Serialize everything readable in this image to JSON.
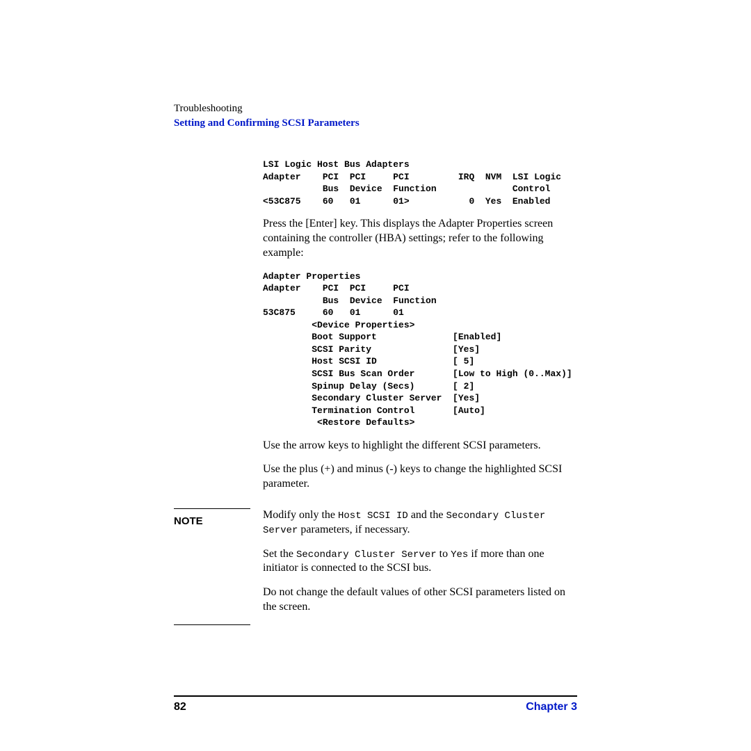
{
  "header": {
    "troubleshooting": "Troubleshooting",
    "setting": "Setting and Confirming SCSI Parameters"
  },
  "screen1": {
    "title": "LSI Logic Host Bus Adapters",
    "h1": "Adapter    PCI  PCI     PCI         IRQ  NVM  LSI Logic",
    "h2": "           Bus  Device  Function              Control",
    "row": "<53C875    60   01      01>           0  Yes  Enabled"
  },
  "para1": "Press the [Enter] key. This displays the Adapter Properties screen containing the controller (HBA) settings; refer to the following example:",
  "screen2": {
    "title": "Adapter Properties",
    "blank1": "",
    "h1": "Adapter    PCI  PCI     PCI",
    "h2": "           Bus  Device  Function",
    "row": "53C875     60   01      01",
    "blank2": "",
    "dev": "         <Device Properties>",
    "blank3": "",
    "p1": "         Boot Support              [Enabled]",
    "p2": "         SCSI Parity               [Yes]",
    "p3": "         Host SCSI ID              [ 5]",
    "p4": "         SCSI Bus Scan Order       [Low to High (0..Max)]",
    "p5": "         Spinup Delay (Secs)       [ 2]",
    "p6": "         Secondary Cluster Server  [Yes]",
    "p7": "         Termination Control       [Auto]",
    "p8": "          <Restore Defaults>"
  },
  "para2": "Use the arrow keys to highlight the different SCSI parameters.",
  "para3": "Use the plus (+) and minus (-) keys to change the highlighted SCSI parameter.",
  "note": {
    "label": "NOTE",
    "l1a": "Modify only the ",
    "l1b": "Host SCSI ID",
    "l1c": " and the ",
    "l1d": "Secondary Cluster Server",
    "l1e": " parameters, if necessary.",
    "l2a": "Set the ",
    "l2b": "Secondary Cluster Server",
    "l2c": " to ",
    "l2d": "Yes",
    "l2e": " if more than one initiator is connected to the SCSI bus.",
    "l3": "Do not change the default values of other SCSI parameters listed on the screen."
  },
  "footer": {
    "page": "82",
    "chapter": "Chapter 3"
  },
  "colors": {
    "link_blue": "#0018c8",
    "text": "#000000",
    "background": "#ffffff"
  },
  "typography": {
    "body_fontsize": 16,
    "mono_fontsize": 13,
    "header_fontsize": 15
  }
}
